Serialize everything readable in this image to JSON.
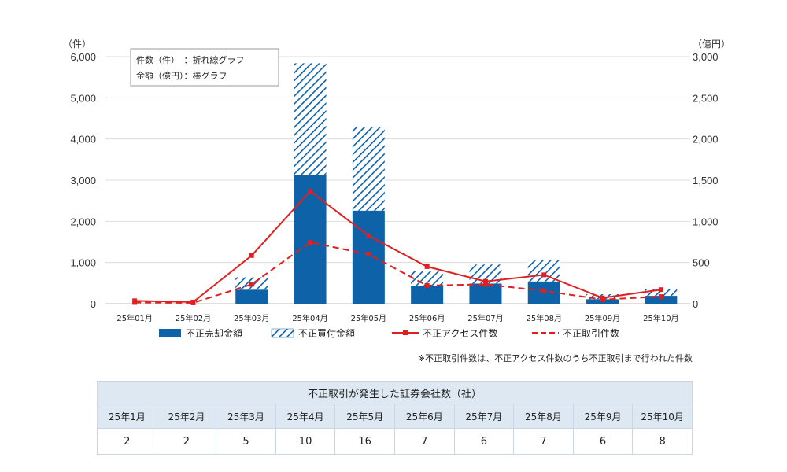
{
  "chart_data": {
    "type": "bar",
    "categories": [
      "25年01月",
      "25年02月",
      "25年03月",
      "25年04月",
      "25年05月",
      "25年06月",
      "25年07月",
      "25年08月",
      "25年09月",
      "25年10月"
    ],
    "left_axis": {
      "unit": "（件）",
      "range": [
        0,
        6000
      ],
      "ticks": [
        "0",
        "1,000",
        "2,000",
        "3,000",
        "4,000",
        "5,000",
        "6,000"
      ]
    },
    "right_axis": {
      "unit": "（億円）",
      "range": [
        0,
        3000
      ],
      "ticks": [
        "0",
        "500",
        "1,000",
        "1,500",
        "2,000",
        "2,500",
        "3,000"
      ]
    },
    "annotation": [
      "件数（件）　：折れ線グラフ",
      "金額（億円）：棒グラフ"
    ],
    "series": [
      {
        "name": "不正売却金額",
        "type": "bar-stacked",
        "axis": "right",
        "color": "#0d62a8",
        "values": [
          0,
          0,
          170,
          1560,
          1130,
          220,
          245,
          270,
          55,
          95
        ]
      },
      {
        "name": "不正買付金額",
        "type": "bar-stacked-hatched",
        "axis": "right",
        "color": "#0d62a8",
        "values": [
          0,
          0,
          150,
          1360,
          1020,
          175,
          230,
          260,
          60,
          85
        ]
      },
      {
        "name": "不正アクセス件数",
        "type": "line",
        "axis": "left",
        "color": "#e02020",
        "values": [
          70,
          40,
          1170,
          2730,
          1650,
          900,
          540,
          700,
          140,
          340
        ]
      },
      {
        "name": "不正取引件数",
        "type": "line-dashed",
        "axis": "left",
        "color": "#e02020",
        "values": [
          30,
          20,
          470,
          1490,
          1200,
          440,
          470,
          310,
          100,
          170
        ]
      }
    ],
    "note": "※不正取引件数は、不正アクセス件数のうち不正取引まで行われた件数"
  },
  "firms_table": {
    "title": "不正取引が発生した証券会社数（社）",
    "months": [
      "25年1月",
      "25年2月",
      "25年3月",
      "25年4月",
      "25年5月",
      "25年6月",
      "25年7月",
      "25年8月",
      "25年9月",
      "25年10月"
    ],
    "values": [
      "2",
      "2",
      "5",
      "10",
      "16",
      "7",
      "6",
      "7",
      "6",
      "8"
    ]
  }
}
